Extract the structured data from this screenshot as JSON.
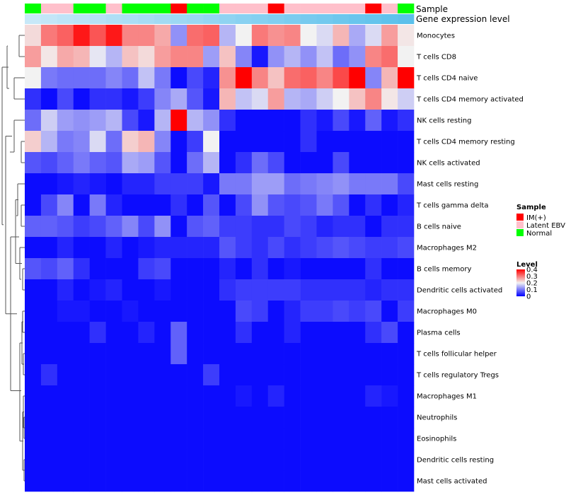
{
  "chart_data": {
    "type": "heatmap",
    "title": "",
    "annotation_labels": [
      "Sample",
      "Gene expression level"
    ],
    "n_samples": 24,
    "sample_groups": [
      "Normal",
      "Latent EBV",
      "Latent EBV",
      "Normal",
      "Normal",
      "Latent EBV",
      "Normal",
      "Normal",
      "Normal",
      "IM(+)",
      "Normal",
      "Normal",
      "Latent EBV",
      "Latent EBV",
      "Latent EBV",
      "IM(+)",
      "Latent EBV",
      "Latent EBV",
      "Latent EBV",
      "Latent EBV",
      "Latent EBV",
      "IM(+)",
      "Latent EBV",
      "Normal"
    ],
    "gene_expression_level": [
      0.0,
      0.04,
      0.09,
      0.13,
      0.17,
      0.22,
      0.26,
      0.3,
      0.35,
      0.39,
      0.43,
      0.48,
      0.52,
      0.57,
      0.61,
      0.65,
      0.7,
      0.74,
      0.78,
      0.83,
      0.87,
      0.91,
      0.96,
      1.0
    ],
    "rows": [
      "Monocytes",
      "T cells CD8",
      "T cells CD4 naive",
      "T cells CD4 memory activated",
      "NK cells resting",
      "T cells CD4 memory resting",
      "NK cells activated",
      "Mast cells resting",
      "T cells gamma delta",
      "B cells naive",
      "Macrophages M2",
      "B cells memory",
      "Dendritic cells activated",
      "Macrophages M0",
      "Plasma cells",
      "T cells follicular helper",
      "T cells regulatory  Tregs",
      "Macrophages M1",
      "Neutrophils",
      "Eosinophils",
      "Dendritic cells resting",
      "Mast cells activated"
    ],
    "values": [
      [
        0.22,
        0.3,
        0.32,
        0.38,
        0.33,
        0.38,
        0.29,
        0.29,
        0.26,
        0.12,
        0.31,
        0.32,
        0.15,
        0.2,
        0.3,
        0.28,
        0.29,
        0.2,
        0.18,
        0.25,
        0.14,
        0.18,
        0.27,
        0.21
      ],
      [
        0.27,
        0.21,
        0.26,
        0.25,
        0.19,
        0.15,
        0.24,
        0.22,
        0.27,
        0.29,
        0.29,
        0.13,
        0.24,
        0.11,
        0.02,
        0.12,
        0.15,
        0.12,
        0.16,
        0.09,
        0.12,
        0.29,
        0.31,
        0.2
      ],
      [
        0.2,
        0.1,
        0.09,
        0.09,
        0.09,
        0.11,
        0.09,
        0.16,
        0.1,
        0.01,
        0.06,
        0.03,
        0.28,
        0.4,
        0.29,
        0.24,
        0.31,
        0.32,
        0.29,
        0.34,
        0.4,
        0.11,
        0.25,
        0.4
      ],
      [
        0.04,
        0.01,
        0.06,
        0.01,
        0.04,
        0.04,
        0.02,
        0.05,
        0.11,
        0.14,
        0.07,
        0.02,
        0.25,
        0.16,
        0.18,
        0.27,
        0.15,
        0.14,
        0.17,
        0.2,
        0.24,
        0.29,
        0.21,
        0.17
      ],
      [
        0.09,
        0.17,
        0.13,
        0.12,
        0.13,
        0.15,
        0.06,
        0.02,
        0.15,
        0.4,
        0.15,
        0.12,
        0.04,
        0.01,
        0.01,
        0.01,
        0.01,
        0.04,
        0.02,
        0.06,
        0.02,
        0.08,
        0.02,
        0.04
      ],
      [
        0.23,
        0.15,
        0.1,
        0.11,
        0.18,
        0.09,
        0.23,
        0.25,
        0.11,
        0.01,
        0.05,
        0.2,
        0.01,
        0.01,
        0.01,
        0.01,
        0.01,
        0.04,
        0.01,
        0.01,
        0.01,
        0.01,
        0.01,
        0.01
      ],
      [
        0.07,
        0.06,
        0.08,
        0.1,
        0.08,
        0.07,
        0.14,
        0.13,
        0.07,
        0.01,
        0.09,
        0.15,
        0.01,
        0.04,
        0.09,
        0.06,
        0.01,
        0.01,
        0.01,
        0.06,
        0.01,
        0.01,
        0.01,
        0.01
      ],
      [
        0.01,
        0.01,
        0.02,
        0.03,
        0.02,
        0.01,
        0.03,
        0.03,
        0.05,
        0.05,
        0.05,
        0.02,
        0.1,
        0.1,
        0.13,
        0.13,
        0.09,
        0.1,
        0.11,
        0.12,
        0.1,
        0.1,
        0.1,
        0.06
      ],
      [
        0.01,
        0.06,
        0.11,
        0.01,
        0.1,
        0.03,
        0.01,
        0.01,
        0.01,
        0.04,
        0.01,
        0.07,
        0.01,
        0.06,
        0.12,
        0.07,
        0.06,
        0.07,
        0.1,
        0.07,
        0.01,
        0.04,
        0.01,
        0.03
      ],
      [
        0.08,
        0.08,
        0.07,
        0.05,
        0.06,
        0.08,
        0.11,
        0.06,
        0.12,
        0.01,
        0.07,
        0.08,
        0.05,
        0.05,
        0.04,
        0.04,
        0.06,
        0.05,
        0.03,
        0.04,
        0.04,
        0.01,
        0.04,
        0.04
      ],
      [
        0.01,
        0.01,
        0.03,
        0.01,
        0.01,
        0.03,
        0.01,
        0.02,
        0.03,
        0.03,
        0.03,
        0.03,
        0.07,
        0.05,
        0.04,
        0.06,
        0.04,
        0.05,
        0.06,
        0.07,
        0.06,
        0.05,
        0.05,
        0.06
      ],
      [
        0.07,
        0.06,
        0.08,
        0.04,
        0.01,
        0.01,
        0.01,
        0.05,
        0.06,
        0.01,
        0.01,
        0.01,
        0.03,
        0.01,
        0.04,
        0.01,
        0.02,
        0.01,
        0.01,
        0.01,
        0.01,
        0.04,
        0.01,
        0.01
      ],
      [
        0.01,
        0.01,
        0.03,
        0.01,
        0.02,
        0.03,
        0.01,
        0.01,
        0.02,
        0.01,
        0.01,
        0.01,
        0.04,
        0.05,
        0.05,
        0.05,
        0.05,
        0.04,
        0.04,
        0.04,
        0.04,
        0.03,
        0.04,
        0.04
      ],
      [
        0.01,
        0.01,
        0.02,
        0.02,
        0.01,
        0.01,
        0.02,
        0.01,
        0.01,
        0.01,
        0.01,
        0.01,
        0.01,
        0.06,
        0.05,
        0.01,
        0.03,
        0.05,
        0.05,
        0.06,
        0.05,
        0.06,
        0.01,
        0.05
      ],
      [
        0.01,
        0.01,
        0.01,
        0.01,
        0.04,
        0.01,
        0.01,
        0.03,
        0.01,
        0.08,
        0.01,
        0.01,
        0.01,
        0.04,
        0.01,
        0.01,
        0.03,
        0.01,
        0.01,
        0.01,
        0.01,
        0.04,
        0.06,
        0.01
      ],
      [
        0.01,
        0.01,
        0.01,
        0.01,
        0.01,
        0.01,
        0.01,
        0.01,
        0.01,
        0.08,
        0.01,
        0.01,
        0.01,
        0.01,
        0.01,
        0.01,
        0.01,
        0.01,
        0.01,
        0.01,
        0.01,
        0.01,
        0.01,
        0.01
      ],
      [
        0.01,
        0.04,
        0.01,
        0.01,
        0.01,
        0.01,
        0.01,
        0.01,
        0.01,
        0.01,
        0.01,
        0.05,
        0.01,
        0.01,
        0.01,
        0.01,
        0.01,
        0.01,
        0.01,
        0.01,
        0.01,
        0.01,
        0.01,
        0.01
      ],
      [
        0.01,
        0.01,
        0.01,
        0.01,
        0.01,
        0.01,
        0.01,
        0.01,
        0.01,
        0.01,
        0.01,
        0.01,
        0.01,
        0.02,
        0.01,
        0.03,
        0.01,
        0.01,
        0.01,
        0.01,
        0.01,
        0.03,
        0.02,
        0.01
      ],
      [
        0.01,
        0.01,
        0.01,
        0.01,
        0.01,
        0.01,
        0.01,
        0.01,
        0.01,
        0.01,
        0.01,
        0.01,
        0.01,
        0.01,
        0.01,
        0.01,
        0.01,
        0.01,
        0.01,
        0.01,
        0.01,
        0.01,
        0.01,
        0.01
      ],
      [
        0.01,
        0.01,
        0.01,
        0.01,
        0.01,
        0.01,
        0.01,
        0.01,
        0.01,
        0.01,
        0.01,
        0.01,
        0.01,
        0.01,
        0.01,
        0.01,
        0.01,
        0.01,
        0.01,
        0.01,
        0.01,
        0.01,
        0.01,
        0.01
      ],
      [
        0.01,
        0.01,
        0.01,
        0.01,
        0.01,
        0.01,
        0.01,
        0.01,
        0.01,
        0.01,
        0.01,
        0.01,
        0.01,
        0.01,
        0.01,
        0.01,
        0.01,
        0.01,
        0.01,
        0.01,
        0.01,
        0.01,
        0.01,
        0.01
      ],
      [
        0.01,
        0.01,
        0.01,
        0.01,
        0.01,
        0.01,
        0.01,
        0.01,
        0.01,
        0.01,
        0.01,
        0.01,
        0.01,
        0.01,
        0.01,
        0.01,
        0.01,
        0.01,
        0.01,
        0.01,
        0.01,
        0.01,
        0.01,
        0.01
      ]
    ],
    "color_scale": {
      "min": 0,
      "max": 0.4,
      "low": "#0000ff",
      "mid": "#f2f2f2",
      "high": "#ff0000",
      "mid_value": 0.2
    },
    "gene_expression_colors": {
      "low": "#c7e8f8",
      "high": "#5bc0eb"
    },
    "legend": {
      "sample": {
        "title": "Sample",
        "entries": [
          {
            "label": "IM(+)",
            "color": "#ff0000"
          },
          {
            "label": "Latent EBV",
            "color": "#ffc0cb"
          },
          {
            "label": "Normal",
            "color": "#00ff00"
          }
        ]
      },
      "level": {
        "title": "Level",
        "ticks": [
          "0.4",
          "0.3",
          "0.2",
          "0.1",
          "0"
        ]
      },
      "placement": "right"
    },
    "dendrogram": {
      "side": "left",
      "leaf_order": "rows"
    }
  }
}
